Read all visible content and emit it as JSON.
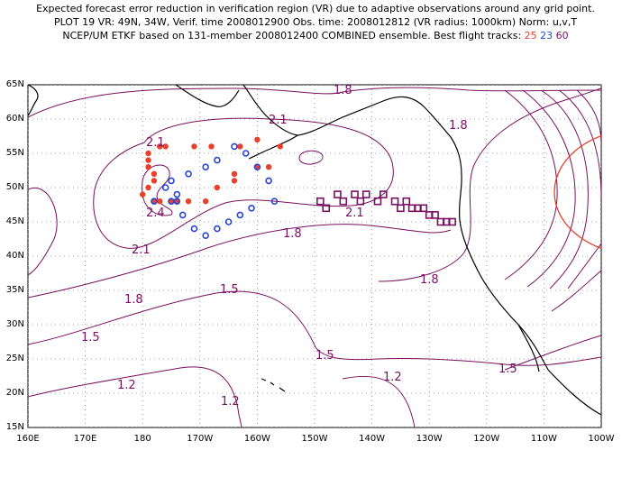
{
  "title": {
    "line1": "Expected forecast error reduction in verification region (VR) due to adaptive observations around any grid point.",
    "line2": "PLOT 19 VR: 49N, 34W, Verif. time 2008012900 Obs. time: 2008012812 (VR radius: 1000km) Norm: u,v,T",
    "line3_prefix": "NCEP/UM ETKF based on 131-member 2008012400 COMBINED ensemble.  Best flight tracks:",
    "track_labels": [
      "25",
      "23",
      "60"
    ]
  },
  "axes": {
    "y_ticks": [
      "65N",
      "60N",
      "55N",
      "50N",
      "45N",
      "40N",
      "35N",
      "30N",
      "25N",
      "20N",
      "15N"
    ],
    "x_ticks": [
      "160E",
      "170E",
      "180",
      "170W",
      "160W",
      "150W",
      "140W",
      "130W",
      "120W",
      "110W",
      "100W"
    ]
  },
  "contour_labels": [
    "1.8",
    "2.1",
    "1.8",
    "2.1",
    "2.4",
    "2.1",
    "2.1",
    "1.8",
    "1.8",
    "1.5",
    "1.8",
    "1.5",
    "1.5",
    "1.5",
    "1.2",
    "1.2",
    "1.2"
  ],
  "colors": {
    "track_25": "#e8402a",
    "track_23": "#2746d8",
    "track_60": "#7a1060",
    "contour": "#7a1060",
    "vr_circle": "#e8402a",
    "coast": "#000000",
    "grid": "#888888"
  },
  "chart_data": {
    "type": "contour-map",
    "field": "Expected forecast error reduction",
    "x_range": [
      "160E",
      "100W"
    ],
    "y_range": [
      "15N",
      "65N"
    ],
    "verification_region": {
      "center_lat": 49,
      "center_lon": "34W",
      "radius_km": 1000
    },
    "contour_levels": [
      1.2,
      1.5,
      1.8,
      2.1,
      2.4
    ],
    "grid": true,
    "flight_tracks": [
      {
        "name": "25",
        "marker": "filled-circle",
        "points": [
          [
            183,
            56
          ],
          [
            179,
            55
          ],
          [
            177,
            56
          ],
          [
            176,
            56
          ],
          [
            171,
            56
          ],
          [
            168,
            56
          ],
          [
            163,
            56
          ],
          [
            160,
            57
          ],
          [
            156,
            56
          ],
          [
            158,
            53
          ],
          [
            160,
            53
          ],
          [
            164,
            51
          ],
          [
            164,
            52
          ],
          [
            167,
            50
          ],
          [
            169,
            48
          ],
          [
            172,
            48
          ],
          [
            174,
            48
          ],
          [
            175,
            48
          ],
          [
            177,
            48
          ],
          [
            178,
            48
          ],
          [
            180,
            49
          ],
          [
            181,
            50
          ],
          [
            182,
            51
          ],
          [
            182,
            52
          ],
          [
            181,
            53
          ],
          [
            181,
            54
          ]
        ]
      },
      {
        "name": "23",
        "marker": "open-circle",
        "points": [
          [
            178,
            48
          ],
          [
            175,
            48
          ],
          [
            174,
            48
          ],
          [
            173,
            46
          ],
          [
            171,
            44
          ],
          [
            169,
            43
          ],
          [
            167,
            44
          ],
          [
            165,
            45
          ],
          [
            163,
            46
          ],
          [
            161,
            47
          ],
          [
            157,
            48
          ],
          [
            158,
            51
          ],
          [
            160,
            53
          ],
          [
            162,
            55
          ],
          [
            164,
            56
          ],
          [
            167,
            54
          ],
          [
            169,
            53
          ],
          [
            172,
            52
          ],
          [
            175,
            51
          ],
          [
            176,
            50
          ],
          [
            174,
            49
          ]
        ]
      },
      {
        "name": "60",
        "marker": "open-square",
        "points": [
          [
            149,
            48
          ],
          [
            148,
            47
          ],
          [
            146,
            49
          ],
          [
            145,
            48
          ],
          [
            143,
            49
          ],
          [
            142,
            48
          ],
          [
            141,
            49
          ],
          [
            139,
            48
          ],
          [
            138,
            49
          ],
          [
            136,
            48
          ],
          [
            135,
            47
          ],
          [
            134,
            48
          ],
          [
            133,
            47
          ],
          [
            132,
            47
          ],
          [
            131,
            47
          ],
          [
            130,
            46
          ],
          [
            129,
            46
          ],
          [
            128,
            45
          ],
          [
            127,
            45
          ],
          [
            126,
            45
          ]
        ]
      }
    ]
  }
}
